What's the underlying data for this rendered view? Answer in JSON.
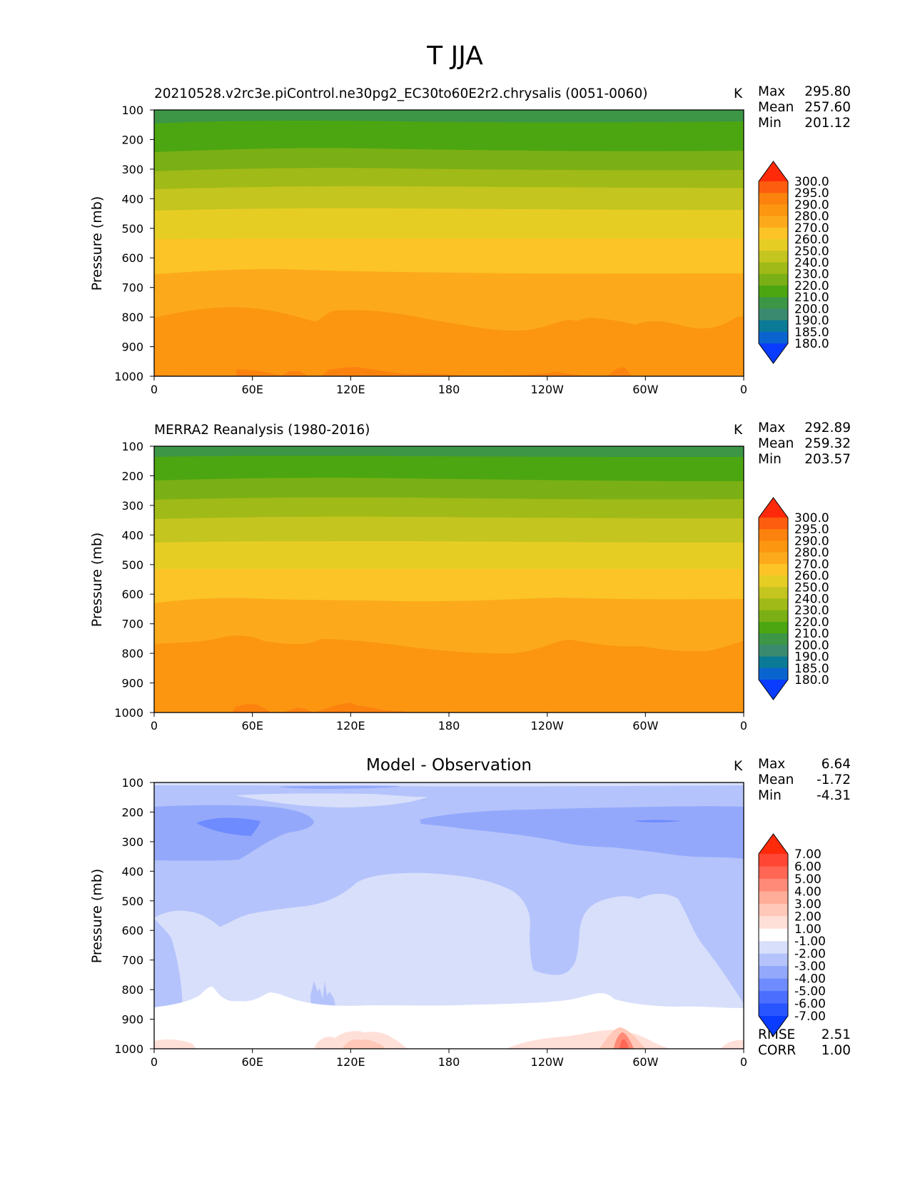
{
  "suptitle": "T JJA",
  "colors": {
    "abs": [
      "#0a3cff",
      "#0a64cf",
      "#0a7a96",
      "#3a8a70",
      "#3c9646",
      "#4ca611",
      "#7ab015",
      "#a0ba17",
      "#c4c51f",
      "#e6cd24",
      "#fcc426",
      "#fcaa1b",
      "#fc9611",
      "#fc820e",
      "#fc5d0e",
      "#ff2a0a"
    ],
    "diff": [
      "#0a3cff",
      "#2855ff",
      "#4c6eff",
      "#6e8bff",
      "#94a8fb",
      "#b4c3fb",
      "#d8dffb",
      "#ffffff",
      "#ffe0d8",
      "#ffc8b8",
      "#ffac98",
      "#ff8a78",
      "#ff6654",
      "#ff4634",
      "#ff2a0a"
    ]
  },
  "panels": [
    {
      "title": "20210528.v2rc3e.piControl.ne30pg2_EC30to60E2r2.chrysalis (0051-0060)",
      "units": "K",
      "stats": [
        {
          "label": "Max",
          "value": "295.80"
        },
        {
          "label": "Mean",
          "value": "257.60"
        },
        {
          "label": "Min",
          "value": "201.12"
        }
      ],
      "ylabel": "Pressure (mb)",
      "colorbar_labels": [
        "300.0",
        "295.0",
        "290.0",
        "280.0",
        "270.0",
        "260.0",
        "250.0",
        "240.0",
        "230.0",
        "220.0",
        "210.0",
        "200.0",
        "190.0",
        "185.0",
        "180.0"
      ]
    },
    {
      "title": "MERRA2 Reanalysis (1980-2016)",
      "units": "K",
      "stats": [
        {
          "label": "Max",
          "value": "292.89"
        },
        {
          "label": "Mean",
          "value": "259.32"
        },
        {
          "label": "Min",
          "value": "203.57"
        }
      ],
      "ylabel": "Pressure (mb)",
      "colorbar_labels": [
        "300.0",
        "295.0",
        "290.0",
        "280.0",
        "270.0",
        "260.0",
        "250.0",
        "240.0",
        "230.0",
        "220.0",
        "210.0",
        "200.0",
        "190.0",
        "185.0",
        "180.0"
      ]
    },
    {
      "title": "Model - Observation",
      "units": "K",
      "stats": [
        {
          "label": "Max",
          "value": "6.64"
        },
        {
          "label": "Mean",
          "value": "-1.72"
        },
        {
          "label": "Min",
          "value": "-4.31"
        }
      ],
      "ylabel": "Pressure (mb)",
      "colorbar_labels": [
        "7.00",
        "6.00",
        "5.00",
        "4.00",
        "3.00",
        "2.00",
        "1.00",
        "-1.00",
        "-2.00",
        "-3.00",
        "-4.00",
        "-5.00",
        "-6.00",
        "-7.00"
      ],
      "extra_stats": [
        {
          "label": "RMSE",
          "value": "2.51"
        },
        {
          "label": "CORR",
          "value": "1.00"
        }
      ]
    }
  ],
  "chart_data": [
    {
      "type": "heatmap",
      "title": "20210528.v2rc3e.piControl.ne30pg2_EC30to60E2r2.chrysalis (0051-0060)",
      "xlabel": "",
      "ylabel": "Pressure (mb)",
      "units": "K",
      "x_ticks": [
        "0",
        "60E",
        "120E",
        "180",
        "120W",
        "60W",
        "0"
      ],
      "y_ticks": [
        "100",
        "200",
        "300",
        "400",
        "500",
        "600",
        "700",
        "800",
        "900",
        "1000"
      ],
      "xlim": [
        0,
        360
      ],
      "ylim": [
        1000,
        100
      ],
      "levels": [
        180.0,
        185.0,
        190.0,
        200.0,
        210.0,
        220.0,
        230.0,
        240.0,
        250.0,
        260.0,
        270.0,
        280.0,
        290.0,
        295.0,
        300.0
      ],
      "band_top_pressure": [
        {
          "level_index": 4,
          "p": 100
        },
        {
          "level_index": 5,
          "p": 160
        },
        {
          "level_index": 6,
          "p": 235
        },
        {
          "level_index": 7,
          "p": 300
        },
        {
          "level_index": 8,
          "p": 365
        },
        {
          "level_index": 9,
          "p": 440
        },
        {
          "level_index": 10,
          "p": 545
        },
        {
          "level_index": 11,
          "p": 665
        },
        {
          "level_index": 12,
          "p": 820
        },
        {
          "level_index": 13,
          "p": 990
        }
      ]
    },
    {
      "type": "heatmap",
      "title": "MERRA2 Reanalysis (1980-2016)",
      "xlabel": "",
      "ylabel": "Pressure (mb)",
      "units": "K",
      "x_ticks": [
        "0",
        "60E",
        "120E",
        "180",
        "120W",
        "60W",
        "0"
      ],
      "y_ticks": [
        "100",
        "200",
        "300",
        "400",
        "500",
        "600",
        "700",
        "800",
        "900",
        "1000"
      ],
      "xlim": [
        0,
        360
      ],
      "ylim": [
        1000,
        100
      ],
      "levels": [
        180.0,
        185.0,
        190.0,
        200.0,
        210.0,
        220.0,
        230.0,
        240.0,
        250.0,
        260.0,
        270.0,
        280.0,
        290.0,
        295.0,
        300.0
      ],
      "band_top_pressure": [
        {
          "level_index": 4,
          "p": 100
        },
        {
          "level_index": 5,
          "p": 135
        },
        {
          "level_index": 6,
          "p": 215
        },
        {
          "level_index": 7,
          "p": 280
        },
        {
          "level_index": 8,
          "p": 345
        },
        {
          "level_index": 9,
          "p": 425
        },
        {
          "level_index": 10,
          "p": 515
        },
        {
          "level_index": 11,
          "p": 635
        },
        {
          "level_index": 12,
          "p": 780
        },
        {
          "level_index": 13,
          "p": 990
        }
      ]
    },
    {
      "type": "heatmap",
      "title": "Model - Observation",
      "xlabel": "",
      "ylabel": "Pressure (mb)",
      "units": "K",
      "x_ticks": [
        "0",
        "60E",
        "120E",
        "180",
        "120W",
        "60W",
        "0"
      ],
      "y_ticks": [
        "100",
        "200",
        "300",
        "400",
        "500",
        "600",
        "700",
        "800",
        "900",
        "1000"
      ],
      "xlim": [
        0,
        360
      ],
      "ylim": [
        1000,
        100
      ],
      "levels": [
        -7.0,
        -6.0,
        -5.0,
        -4.0,
        -3.0,
        -2.0,
        -1.0,
        1.0,
        2.0,
        3.0,
        4.0,
        5.0,
        6.0,
        7.0
      ]
    }
  ]
}
